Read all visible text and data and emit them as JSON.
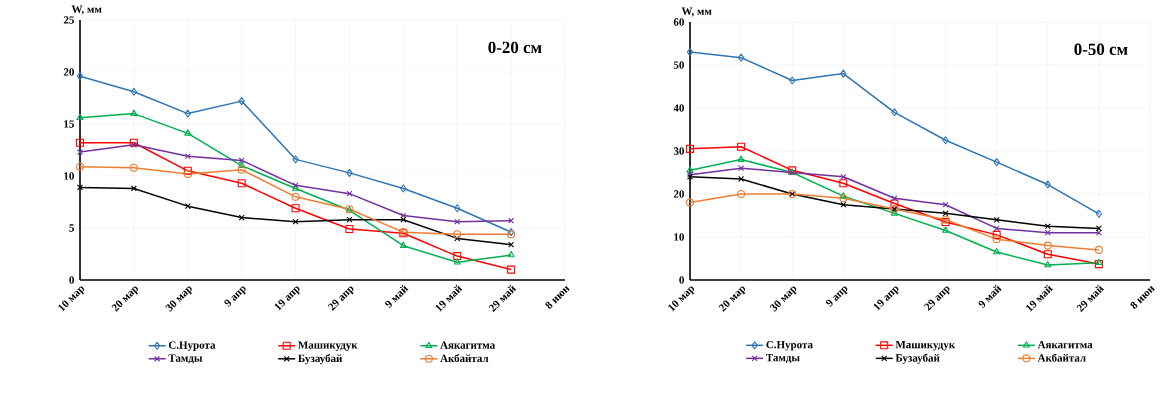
{
  "chart_data": [
    {
      "type": "line",
      "ylabel": "W, мм",
      "annotations": [
        "0-20 см"
      ],
      "categories": [
        "10 мар",
        "20 мар",
        "30 мар",
        "9 апр",
        "19 апр",
        "29 апр",
        "9 май",
        "19 май",
        "29 май",
        "8 июн"
      ],
      "ylim": [
        0,
        25
      ],
      "yticks": [
        0,
        5,
        10,
        15,
        20,
        25
      ],
      "grid": true,
      "legend": "bottom",
      "line_style": "solid",
      "series": [
        {
          "name": "С.Нурота",
          "color": "#2e75b6",
          "marker": "diamond",
          "values": [
            19.6,
            18.1,
            16.0,
            17.2,
            11.6,
            10.3,
            8.8,
            6.9,
            4.6,
            null
          ]
        },
        {
          "name": "Машикудук",
          "color": "#ff0000",
          "marker": "square",
          "values": [
            13.2,
            13.2,
            10.5,
            9.3,
            6.9,
            4.9,
            4.5,
            2.3,
            1.0,
            null
          ]
        },
        {
          "name": "Аякагитма",
          "color": "#00b050",
          "marker": "triangle",
          "values": [
            15.6,
            16.0,
            14.1,
            11.0,
            8.8,
            6.7,
            3.3,
            1.7,
            2.4,
            null
          ]
        },
        {
          "name": "Тамды",
          "color": "#7030a0",
          "marker": "cross",
          "values": [
            12.3,
            13.0,
            11.9,
            11.5,
            9.1,
            8.3,
            6.2,
            5.6,
            5.7,
            null
          ]
        },
        {
          "name": "Бузаубай",
          "color": "#000000",
          "marker": "cross",
          "values": [
            8.9,
            8.8,
            7.1,
            6.0,
            5.6,
            5.8,
            5.8,
            4.0,
            3.4,
            null
          ]
        },
        {
          "name": "Акбайтал",
          "color": "#ed7d31",
          "marker": "circle",
          "values": [
            10.9,
            10.8,
            10.2,
            10.6,
            8.0,
            6.8,
            4.6,
            4.4,
            4.4,
            null
          ]
        }
      ]
    },
    {
      "type": "line",
      "ylabel": "W, мм",
      "annotations": [
        "0-50 см"
      ],
      "categories": [
        "10 мар",
        "20 мар",
        "30 мар",
        "9 апр",
        "19 апр",
        "29 апр",
        "9 май",
        "19 май",
        "29 май",
        "8 июн"
      ],
      "ylim": [
        0,
        60
      ],
      "yticks": [
        0,
        10,
        20,
        30,
        40,
        50,
        60
      ],
      "grid": true,
      "legend": "bottom",
      "line_style": "solid",
      "series": [
        {
          "name": "С.Нурота",
          "color": "#2e75b6",
          "marker": "diamond",
          "values": [
            53.0,
            51.7,
            46.4,
            48.0,
            39.0,
            32.5,
            27.4,
            22.2,
            15.4,
            null
          ]
        },
        {
          "name": "Машикудук",
          "color": "#ff0000",
          "marker": "square",
          "values": [
            30.5,
            31.0,
            25.5,
            22.5,
            17.8,
            13.5,
            10.5,
            6.0,
            3.7,
            null
          ]
        },
        {
          "name": "Аякагитма",
          "color": "#00b050",
          "marker": "triangle",
          "values": [
            25.5,
            28.0,
            25.0,
            19.5,
            15.5,
            11.5,
            6.5,
            3.5,
            4.0,
            null
          ]
        },
        {
          "name": "Тамды",
          "color": "#7030a0",
          "marker": "cross",
          "values": [
            24.5,
            26.0,
            25.0,
            24.0,
            19.0,
            17.5,
            12.0,
            11.0,
            11.0,
            null
          ]
        },
        {
          "name": "Бузаубай",
          "color": "#000000",
          "marker": "cross",
          "values": [
            24.0,
            23.5,
            20.0,
            17.5,
            16.5,
            15.5,
            14.0,
            12.5,
            12.0,
            null
          ]
        },
        {
          "name": "Акбайтал",
          "color": "#ed7d31",
          "marker": "circle",
          "values": [
            18.0,
            20.0,
            20.0,
            19.0,
            16.5,
            14.0,
            9.5,
            8.0,
            7.0,
            null
          ]
        }
      ]
    }
  ]
}
